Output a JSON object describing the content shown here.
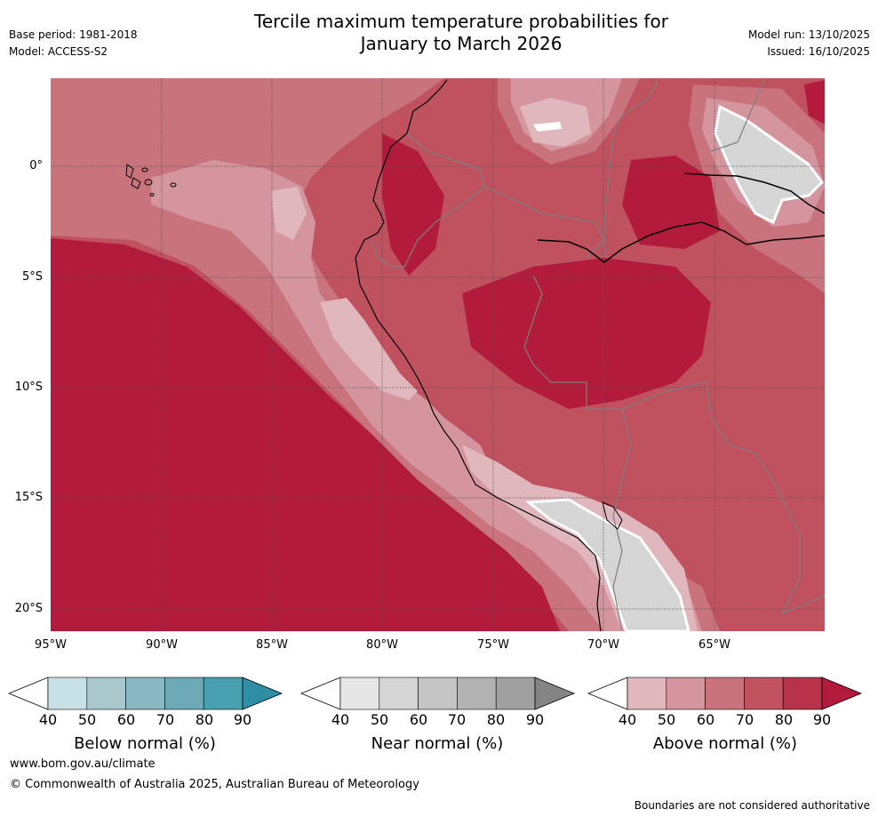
{
  "header": {
    "title_line1": "Tercile maximum temperature probabilities for",
    "title_line2": "January to March 2026",
    "base_period": "Base period: 1981-2018",
    "model": "Model: ACCESS-S2",
    "model_run": "Model run: 13/10/2025",
    "issued": "Issued: 16/10/2025"
  },
  "map": {
    "region": "Western South America (Peru / Ecuador / Bolivia)",
    "lat_labels": [
      "0°",
      "5°S",
      "10°S",
      "15°S",
      "20°S"
    ],
    "lon_labels": [
      "95°W",
      "90°W",
      "85°W",
      "80°W",
      "75°W",
      "70°W",
      "65°W"
    ],
    "lon_range": [
      -95,
      -60
    ],
    "lat_range": [
      -21,
      4
    ]
  },
  "colorbars": [
    {
      "name": "below",
      "title": "Below normal (%)",
      "ticks": [
        "40",
        "50",
        "60",
        "70",
        "80",
        "90"
      ],
      "colors": [
        "#ffffff",
        "#c8e1e7",
        "#a8c8ce",
        "#8ab9c4",
        "#6caab7",
        "#48a0b0",
        "#2d8ea4"
      ]
    },
    {
      "name": "near",
      "title": "Near normal (%)",
      "ticks": [
        "40",
        "50",
        "60",
        "70",
        "80",
        "90"
      ],
      "colors": [
        "#ffffff",
        "#e6e6e6",
        "#d5d5d5",
        "#c5c5c5",
        "#b3b3b3",
        "#a0a0a0",
        "#848484"
      ]
    },
    {
      "name": "above",
      "title": "Above normal (%)",
      "ticks": [
        "40",
        "50",
        "60",
        "70",
        "80",
        "90"
      ],
      "colors": [
        "#ffffff",
        "#e0b7bd",
        "#d5959e",
        "#c9737d",
        "#c0515f",
        "#b6334a",
        "#b31b3d"
      ]
    }
  ],
  "footer": {
    "website": "www.bom.gov.au/climate",
    "copyright": "© Commonwealth of Australia 2025, Australian Bureau of Meteorology",
    "disclaimer": "Boundaries are not considered authoritative"
  }
}
